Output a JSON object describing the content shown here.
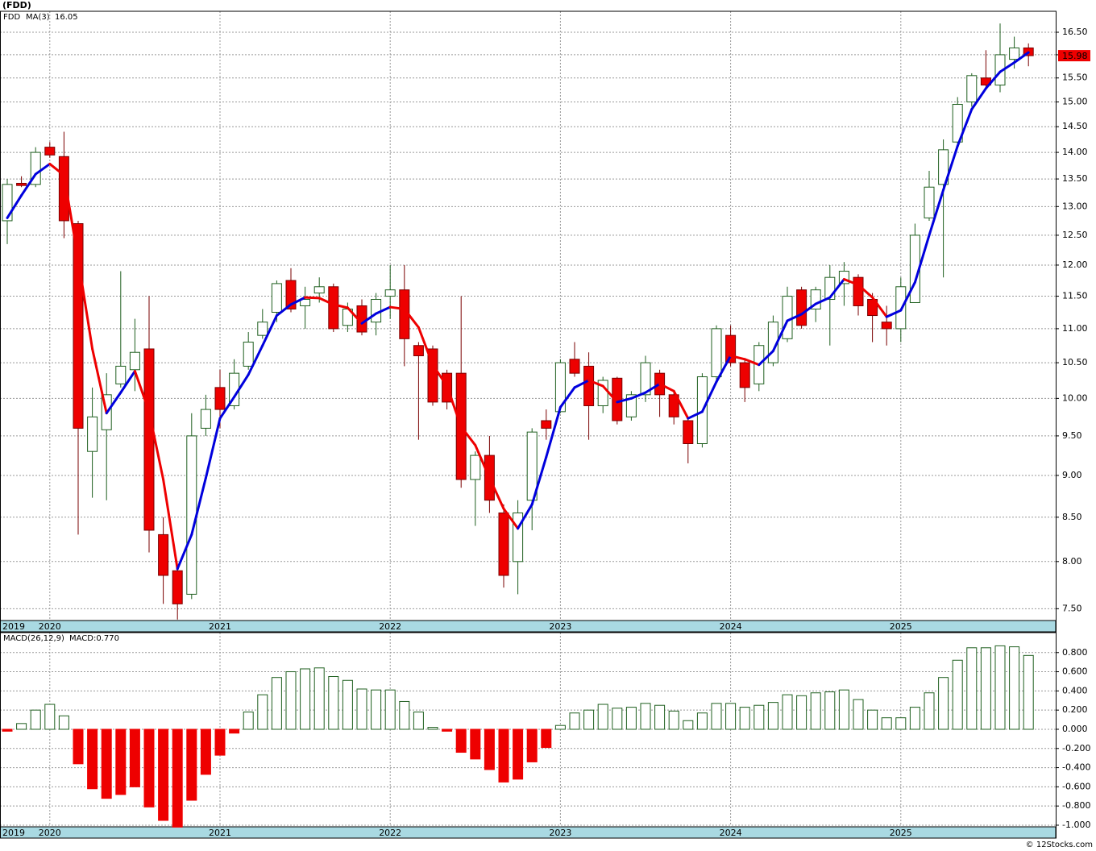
{
  "chart_data": [
    {
      "type": "candlestick",
      "title": "(FDD)",
      "legend": "FDD",
      "up_color": "#ffffff",
      "up_edge": "#1f5f1f",
      "down_color": "#ee0000",
      "down_edge": "#7a0000",
      "log_scale": true,
      "grid": true,
      "categories": [
        "2019",
        null,
        null,
        "2020",
        null,
        null,
        null,
        null,
        null,
        null,
        null,
        null,
        null,
        null,
        null,
        "2021",
        null,
        null,
        null,
        null,
        null,
        null,
        null,
        null,
        null,
        null,
        null,
        "2022",
        null,
        null,
        null,
        null,
        null,
        null,
        null,
        null,
        null,
        null,
        null,
        "2023",
        null,
        null,
        null,
        null,
        null,
        null,
        null,
        null,
        null,
        null,
        null,
        "2024",
        null,
        null,
        null,
        null,
        null,
        null,
        null,
        null,
        null,
        null,
        null,
        "2025",
        null,
        null,
        null,
        null,
        null,
        null,
        null,
        null,
        null
      ],
      "open": [
        12.75,
        13.42,
        13.4,
        14.1,
        13.92,
        12.7,
        9.3,
        9.58,
        10.2,
        10.4,
        10.7,
        8.3,
        7.9,
        7.65,
        9.6,
        10.15,
        9.9,
        10.45,
        10.9,
        11.25,
        11.75,
        11.35,
        11.55,
        11.65,
        11.05,
        11.35,
        11.1,
        11.5,
        11.6,
        10.75,
        10.7,
        10.35,
        10.35,
        8.95,
        9.25,
        8.55,
        8.0,
        8.7,
        9.7,
        9.82,
        10.55,
        10.45,
        9.9,
        10.28,
        9.75,
        10.05,
        10.35,
        10.05,
        9.7,
        9.4,
        10.3,
        10.9,
        10.5,
        10.2,
        10.5,
        10.85,
        11.6,
        11.3,
        11.45,
        11.7,
        11.8,
        11.45,
        11.1,
        11.0,
        11.4,
        12.8,
        13.4,
        14.2,
        15.0,
        15.5,
        15.35,
        15.9,
        16.15
      ],
      "high": [
        13.5,
        13.55,
        14.1,
        14.2,
        14.4,
        12.75,
        10.15,
        10.35,
        11.9,
        11.15,
        11.5,
        8.5,
        7.95,
        9.8,
        10.05,
        10.4,
        10.55,
        10.95,
        11.3,
        11.75,
        11.95,
        11.65,
        11.8,
        11.7,
        11.4,
        11.45,
        11.55,
        12.0,
        12.0,
        10.8,
        10.75,
        10.4,
        11.5,
        9.3,
        9.5,
        8.65,
        8.7,
        9.6,
        9.85,
        10.55,
        10.8,
        10.65,
        10.3,
        10.3,
        10.1,
        10.6,
        10.4,
        10.1,
        9.75,
        10.35,
        11.05,
        11.05,
        10.55,
        10.8,
        11.2,
        11.65,
        11.65,
        11.65,
        12.0,
        12.05,
        11.85,
        11.55,
        11.35,
        11.8,
        12.7,
        13.65,
        14.25,
        15.1,
        15.6,
        16.1,
        16.7,
        16.4,
        16.25
      ],
      "low": [
        12.35,
        13.35,
        13.35,
        13.9,
        12.45,
        8.3,
        8.73,
        8.7,
        10.15,
        10.1,
        8.1,
        7.55,
        7.39,
        7.6,
        9.5,
        9.6,
        9.85,
        10.4,
        10.85,
        11.1,
        11.25,
        11.0,
        11.4,
        10.95,
        10.95,
        10.9,
        10.9,
        11.15,
        10.45,
        9.45,
        9.9,
        9.85,
        8.85,
        8.4,
        8.55,
        7.72,
        7.65,
        8.35,
        9.45,
        9.8,
        10.3,
        9.45,
        9.8,
        9.65,
        9.7,
        9.95,
        9.75,
        9.65,
        9.15,
        9.35,
        10.25,
        10.45,
        9.95,
        10.1,
        10.45,
        10.8,
        11.0,
        11.1,
        10.75,
        11.35,
        11.2,
        10.8,
        10.75,
        10.8,
        11.4,
        12.75,
        11.8,
        14.1,
        14.9,
        15.3,
        15.2,
        15.7,
        15.75
      ],
      "close": [
        13.4,
        13.38,
        14.0,
        13.95,
        12.75,
        9.6,
        9.75,
        10.05,
        10.45,
        10.65,
        8.35,
        7.85,
        7.55,
        9.5,
        9.85,
        9.85,
        10.35,
        10.8,
        11.1,
        11.7,
        11.3,
        11.45,
        11.65,
        11.0,
        11.3,
        10.95,
        11.45,
        11.6,
        10.85,
        10.6,
        9.95,
        9.95,
        8.95,
        9.25,
        8.7,
        7.85,
        8.55,
        9.55,
        9.6,
        10.5,
        10.35,
        9.9,
        10.25,
        9.7,
        10.05,
        10.5,
        10.05,
        9.75,
        9.4,
        10.3,
        11.0,
        10.5,
        10.15,
        10.75,
        11.1,
        11.5,
        11.05,
        11.6,
        11.8,
        11.9,
        11.35,
        11.2,
        11.0,
        11.65,
        12.5,
        13.35,
        14.05,
        14.95,
        15.55,
        15.35,
        16.0,
        16.15,
        15.98
      ],
      "series": [
        {
          "name": "MA(3)",
          "color": "#0000dd",
          "down_color": "#ee0000",
          "legend_color": "#0000cc",
          "values": [
            12.8,
            13.2,
            13.59,
            13.78,
            13.57,
            12.1,
            10.7,
            9.8,
            10.08,
            10.38,
            9.82,
            8.95,
            7.92,
            8.3,
            8.97,
            9.73,
            10.02,
            10.33,
            10.75,
            11.2,
            11.37,
            11.48,
            11.47,
            11.37,
            11.32,
            11.08,
            11.23,
            11.33,
            11.3,
            11.02,
            10.47,
            10.17,
            9.62,
            9.38,
            8.97,
            8.6,
            8.37,
            8.65,
            9.23,
            9.88,
            10.15,
            10.25,
            10.17,
            9.95,
            10.0,
            10.08,
            10.2,
            10.1,
            9.73,
            9.82,
            10.23,
            10.6,
            10.55,
            10.47,
            10.67,
            11.12,
            11.22,
            11.38,
            11.48,
            11.77,
            11.68,
            11.48,
            11.18,
            11.28,
            11.72,
            12.5,
            13.3,
            14.12,
            14.85,
            15.28,
            15.63,
            15.83,
            16.05
          ]
        }
      ],
      "ylim": [
        7.38,
        16.98
      ],
      "yticks": [
        {
          "value": 7.5,
          "label": "7.50"
        },
        {
          "value": 8,
          "label": "8.00"
        },
        {
          "value": 8.5,
          "label": "8.50"
        },
        {
          "value": 9,
          "label": "9.00"
        },
        {
          "value": 9.5,
          "label": "9.50"
        },
        {
          "value": 10,
          "label": "10.00"
        },
        {
          "value": 10.5,
          "label": "10.50"
        },
        {
          "value": 11,
          "label": "11.00"
        },
        {
          "value": 11.5,
          "label": "11.50"
        },
        {
          "value": 12,
          "label": "12.00"
        },
        {
          "value": 12.5,
          "label": "12.50"
        },
        {
          "value": 13,
          "label": "13.00"
        },
        {
          "value": 13.5,
          "label": "13.50"
        },
        {
          "value": 14,
          "label": "14.00"
        },
        {
          "value": 14.5,
          "label": "14.50"
        },
        {
          "value": 15,
          "label": "15.00"
        },
        {
          "value": 15.5,
          "label": "15.50"
        },
        {
          "value": 16,
          "label": "16.00"
        },
        {
          "value": 16.5,
          "label": "16.50"
        }
      ]
    },
    {
      "type": "bar",
      "legend": "MACD(26,12,9)",
      "legend_value": "MACD:0.770",
      "up_edge": "#1f5f1f",
      "down_color": "#ee0000",
      "grid": true,
      "categories": [
        "2019",
        null,
        null,
        "2020",
        null,
        null,
        null,
        null,
        null,
        null,
        null,
        null,
        null,
        null,
        null,
        "2021",
        null,
        null,
        null,
        null,
        null,
        null,
        null,
        null,
        null,
        null,
        null,
        "2022",
        null,
        null,
        null,
        null,
        null,
        null,
        null,
        null,
        null,
        null,
        null,
        "2023",
        null,
        null,
        null,
        null,
        null,
        null,
        null,
        null,
        null,
        null,
        null,
        "2024",
        null,
        null,
        null,
        null,
        null,
        null,
        null,
        null,
        null,
        null,
        null,
        "2025",
        null,
        null,
        null,
        null,
        null,
        null,
        null,
        null,
        null
      ],
      "values": [
        -0.02,
        0.06,
        0.2,
        0.26,
        0.14,
        -0.36,
        -0.62,
        -0.72,
        -0.68,
        -0.6,
        -0.81,
        -0.95,
        -1.02,
        -0.74,
        -0.47,
        -0.27,
        -0.04,
        0.18,
        0.36,
        0.54,
        0.6,
        0.63,
        0.64,
        0.55,
        0.51,
        0.42,
        0.41,
        0.41,
        0.29,
        0.18,
        0.02,
        -0.02,
        -0.24,
        -0.31,
        -0.42,
        -0.55,
        -0.52,
        -0.34,
        -0.19,
        0.04,
        0.17,
        0.2,
        0.26,
        0.22,
        0.23,
        0.27,
        0.25,
        0.19,
        0.09,
        0.17,
        0.27,
        0.27,
        0.23,
        0.25,
        0.28,
        0.36,
        0.35,
        0.38,
        0.39,
        0.41,
        0.31,
        0.2,
        0.12,
        0.12,
        0.23,
        0.38,
        0.54,
        0.72,
        0.85,
        0.85,
        0.87,
        0.86,
        0.77
      ],
      "ylim": [
        -1.017,
        1.008
      ],
      "yticks": [
        {
          "value": -1,
          "label": "-1.000"
        },
        {
          "value": -0.8,
          "label": "-0.800"
        },
        {
          "value": -0.6,
          "label": "-0.600"
        },
        {
          "value": -0.4,
          "label": "-0.400"
        },
        {
          "value": -0.2,
          "label": "-0.200"
        },
        {
          "value": 0,
          "label": "0.000"
        },
        {
          "value": 0.2,
          "label": "0.200"
        },
        {
          "value": 0.4,
          "label": "0.400"
        },
        {
          "value": 0.6,
          "label": "0.600"
        },
        {
          "value": 0.8,
          "label": "0.800"
        }
      ]
    }
  ],
  "footer": "© 12Stocks.com"
}
